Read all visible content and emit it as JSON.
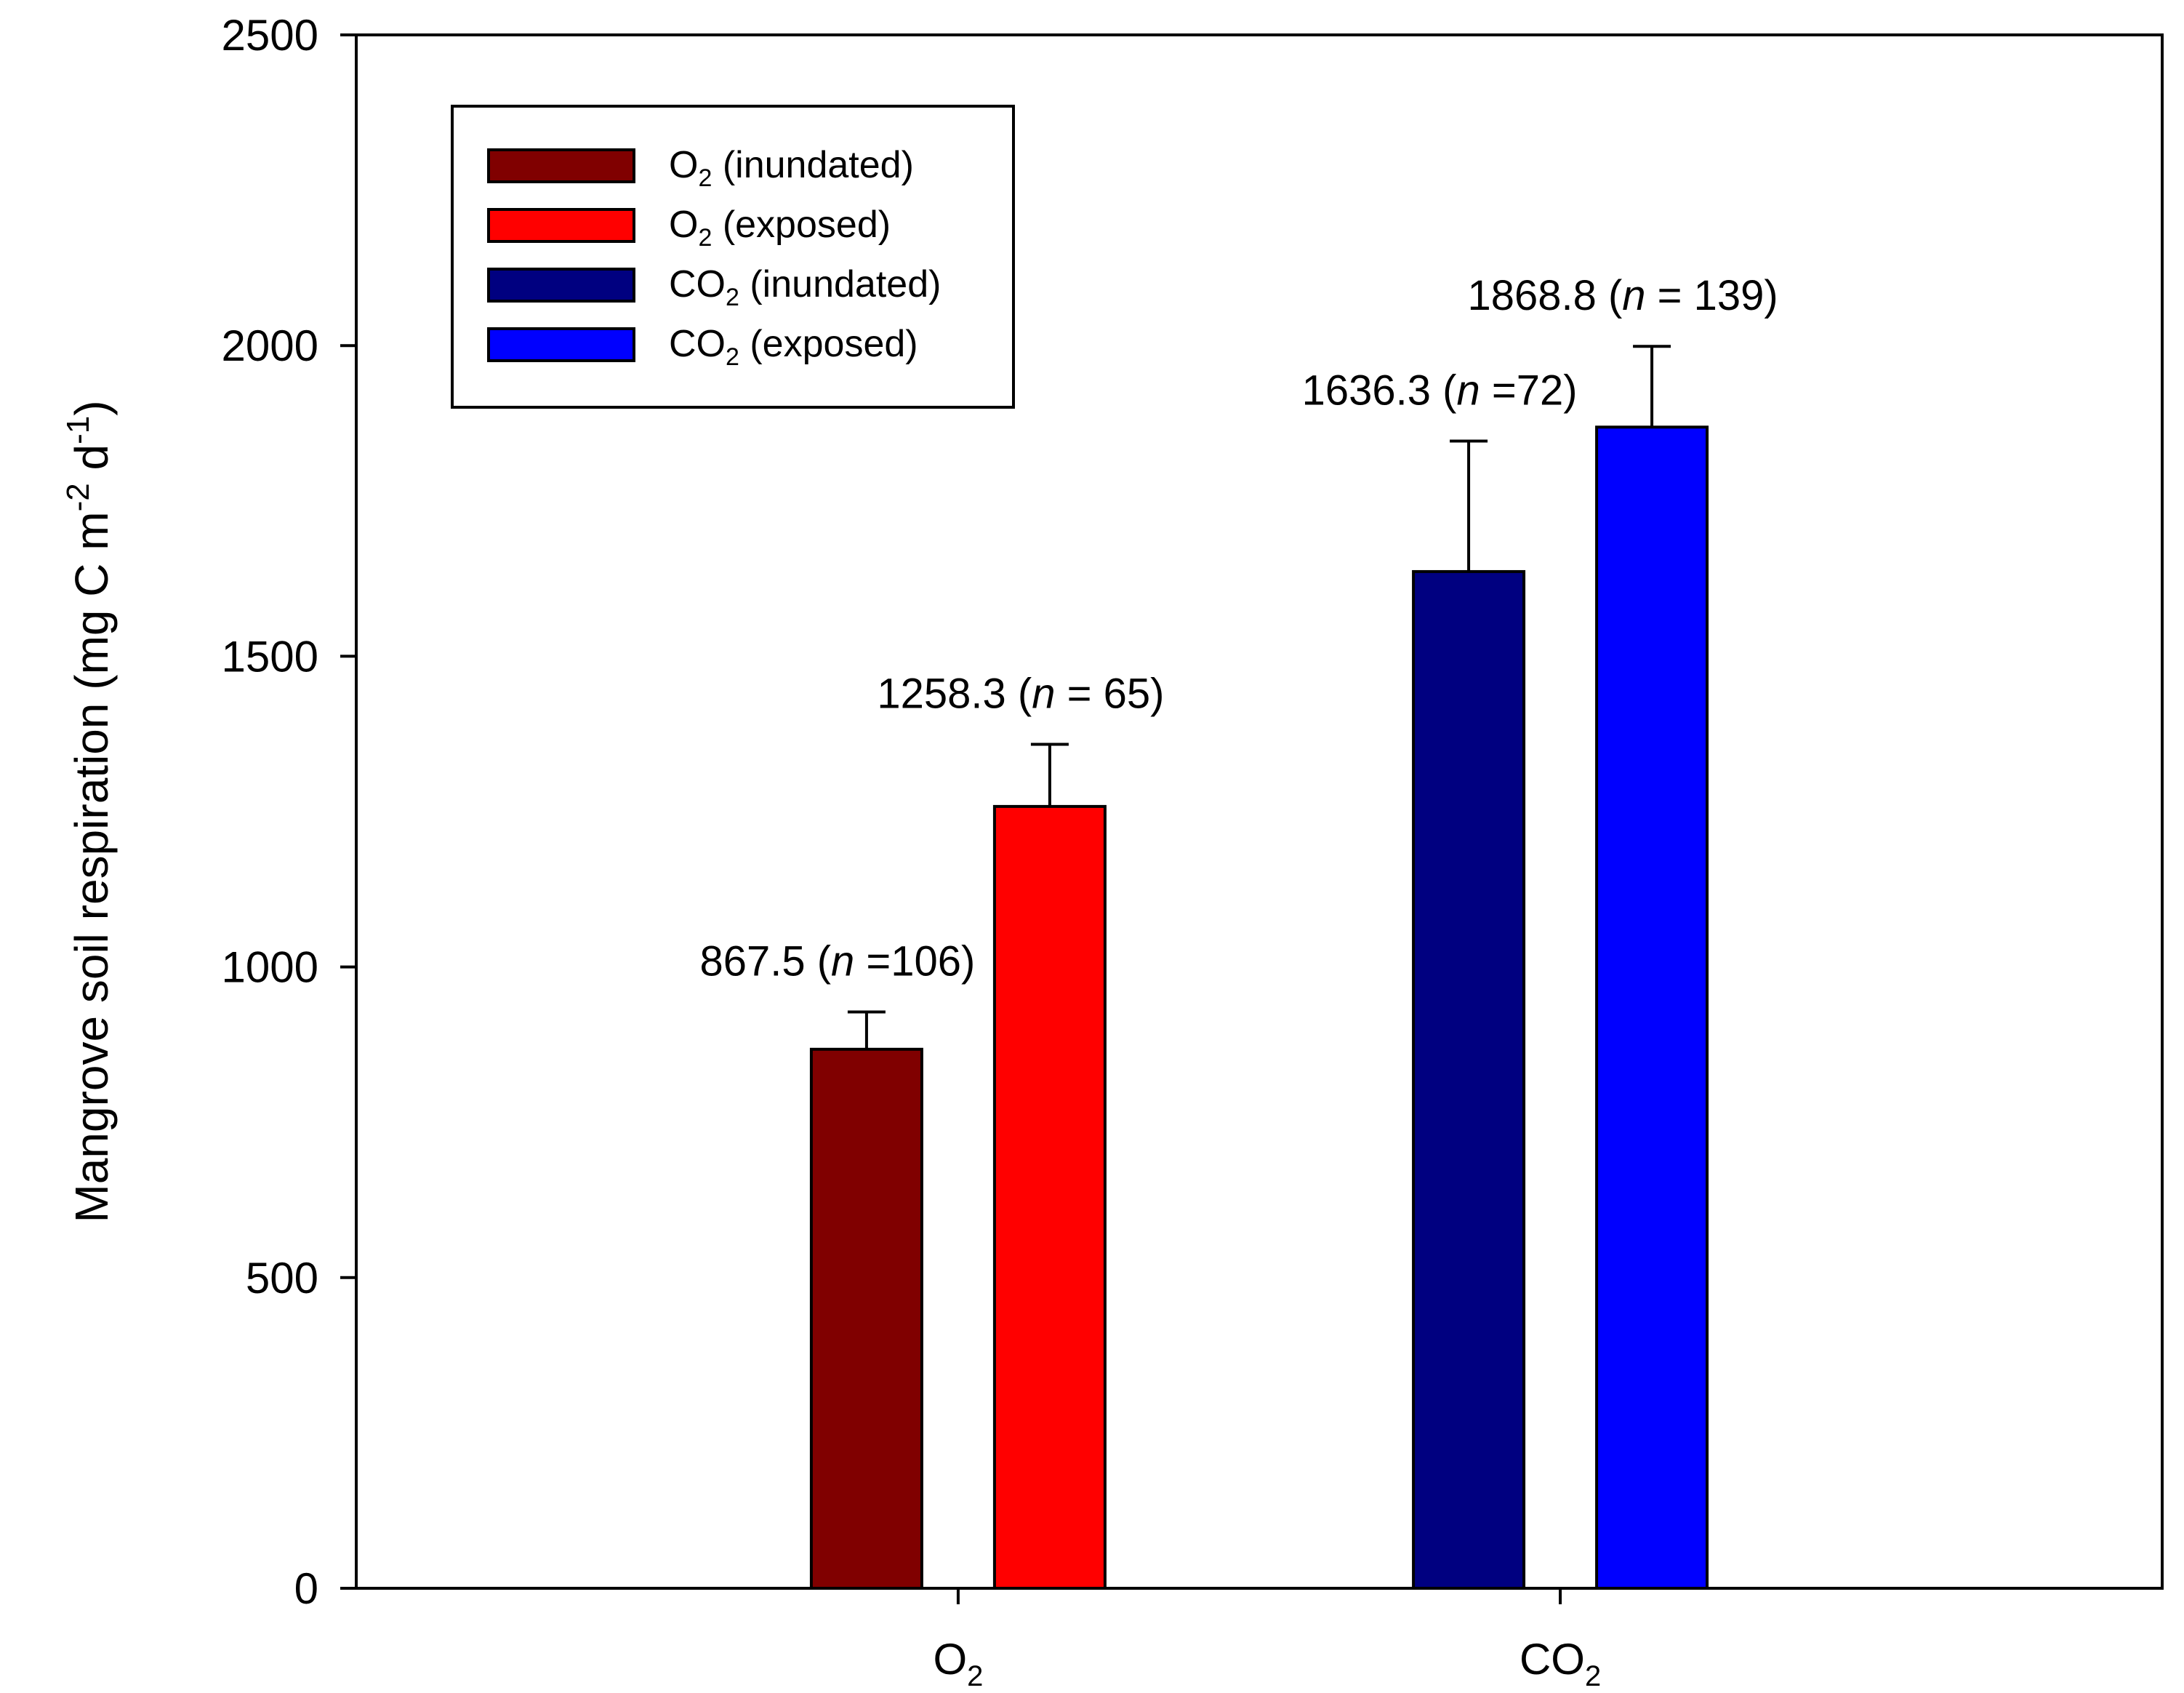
{
  "chart_data": {
    "type": "bar",
    "title": "",
    "xlabel": "",
    "ylabel": "Mangrove soil respiration (mg C m",
    "ylabel_sup1": "-2",
    "ylabel_mid": " d",
    "ylabel_sup2": "-1",
    "ylabel_end": ")",
    "ylim": [
      0,
      2500
    ],
    "yticks": [
      "0",
      "500",
      "1000",
      "1500",
      "2000",
      "2500"
    ],
    "ytick_values": [
      0,
      500,
      1000,
      1500,
      2000,
      2500
    ],
    "categories": [
      {
        "base": "O",
        "sub": "2"
      },
      {
        "base": "CO",
        "sub": "2"
      }
    ],
    "legend_position": "top-left",
    "series": [
      {
        "name_base": "O",
        "name_sub": "2",
        "name_rest": " (inundated)",
        "color": "#800000",
        "category": 0,
        "value": 867.5,
        "error": 60,
        "label_value": "867.5 (",
        "label_n": "n",
        "label_rest": " =106)"
      },
      {
        "name_base": "O",
        "name_sub": "2",
        "name_rest": " (exposed)",
        "color": "#ff0000",
        "category": 0,
        "value": 1258.3,
        "error": 100,
        "label_value": "1258.3 (",
        "label_n": "n",
        "label_rest": " = 65)"
      },
      {
        "name_base": "CO",
        "name_sub": "2",
        "name_rest": " (inundated)",
        "color": "#000080",
        "category": 1,
        "value": 1636.3,
        "error": 210,
        "label_value": "1636.3 (",
        "label_n": "n",
        "label_rest": " =72)"
      },
      {
        "name_base": "CO",
        "name_sub": "2",
        "name_rest": " (exposed)",
        "color": "#0000ff",
        "category": 1,
        "value": 1868.8,
        "error": 130,
        "label_value": "1868.8 (",
        "label_n": "n",
        "label_rest": " = 139)"
      }
    ]
  }
}
